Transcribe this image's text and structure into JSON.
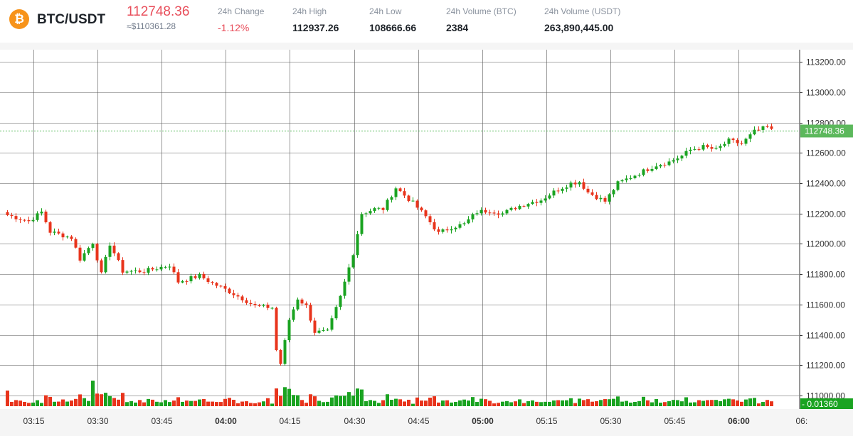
{
  "header": {
    "logo_glyph": "₿",
    "pair": "BTC/USDT",
    "price": "112748.36",
    "price_usd": "≈$110361.28",
    "stats": [
      {
        "label": "24h Change",
        "value": "-1.12%"
      },
      {
        "label": "24h High",
        "value": "112937.26"
      },
      {
        "label": "24h Low",
        "value": "108666.66"
      },
      {
        "label": "24h Volume (BTC)",
        "value": "2384"
      },
      {
        "label": "24h Volume (USDT)",
        "value": "263,890,445.00"
      }
    ]
  },
  "colors": {
    "up": "#1aa321",
    "down": "#e8341c",
    "grid": "#555555",
    "last_price_bg": "#5cb85c"
  },
  "chart_data": {
    "type": "candlestick",
    "y_ticks": [
      "113200.00",
      "113000.00",
      "112800.00",
      "112600.00",
      "112400.00",
      "112200.00",
      "112000.00",
      "111800.00",
      "111600.00",
      "111400.00",
      "111200.00",
      "111000.00"
    ],
    "ylim": [
      110930,
      113280
    ],
    "x_ticks": [
      {
        "label": "03:15",
        "bold": false
      },
      {
        "label": "03:30",
        "bold": false
      },
      {
        "label": "03:45",
        "bold": false
      },
      {
        "label": "04:00",
        "bold": true
      },
      {
        "label": "04:15",
        "bold": false
      },
      {
        "label": "04:30",
        "bold": false
      },
      {
        "label": "04:45",
        "bold": false
      },
      {
        "label": "05:00",
        "bold": true
      },
      {
        "label": "05:15",
        "bold": false
      },
      {
        "label": "05:30",
        "bold": false
      },
      {
        "label": "05:45",
        "bold": false
      },
      {
        "label": "06:00",
        "bold": true
      },
      {
        "label": "06:",
        "bold": false
      }
    ],
    "last_price_label": "112748.36",
    "last_volume_label": "0.01360",
    "anchors": [
      [
        0,
        112190
      ],
      [
        5,
        112150
      ],
      [
        8,
        112210
      ],
      [
        10,
        112080
      ],
      [
        15,
        112040
      ],
      [
        17,
        111900
      ],
      [
        20,
        112010
      ],
      [
        22,
        111800
      ],
      [
        24,
        112000
      ],
      [
        27,
        111820
      ],
      [
        32,
        111820
      ],
      [
        38,
        111860
      ],
      [
        40,
        111750
      ],
      [
        45,
        111790
      ],
      [
        48,
        111740
      ],
      [
        51,
        111700
      ],
      [
        55,
        111640
      ],
      [
        58,
        111590
      ],
      [
        62,
        111580
      ],
      [
        63,
        111300
      ],
      [
        64,
        111210
      ],
      [
        66,
        111500
      ],
      [
        68,
        111640
      ],
      [
        70,
        111590
      ],
      [
        72,
        111420
      ],
      [
        75,
        111420
      ],
      [
        78,
        111650
      ],
      [
        81,
        111940
      ],
      [
        83,
        112200
      ],
      [
        86,
        112230
      ],
      [
        88,
        112230
      ],
      [
        91,
        112370
      ],
      [
        95,
        112270
      ],
      [
        98,
        112180
      ],
      [
        101,
        112070
      ],
      [
        104,
        112110
      ],
      [
        107,
        112130
      ],
      [
        110,
        112210
      ],
      [
        113,
        112220
      ],
      [
        116,
        112200
      ],
      [
        119,
        112240
      ],
      [
        122,
        112270
      ],
      [
        125,
        112290
      ],
      [
        129,
        112360
      ],
      [
        132,
        112400
      ],
      [
        134,
        112410
      ],
      [
        136,
        112340
      ],
      [
        138,
        112310
      ],
      [
        140,
        112280
      ],
      [
        143,
        112400
      ],
      [
        146,
        112440
      ],
      [
        149,
        112480
      ],
      [
        152,
        112520
      ],
      [
        155,
        112540
      ],
      [
        158,
        112580
      ],
      [
        160,
        112620
      ],
      [
        163,
        112640
      ],
      [
        166,
        112620
      ],
      [
        169,
        112680
      ],
      [
        172,
        112660
      ],
      [
        175,
        112740
      ],
      [
        178,
        112770
      ],
      [
        179,
        112748
      ]
    ]
  }
}
